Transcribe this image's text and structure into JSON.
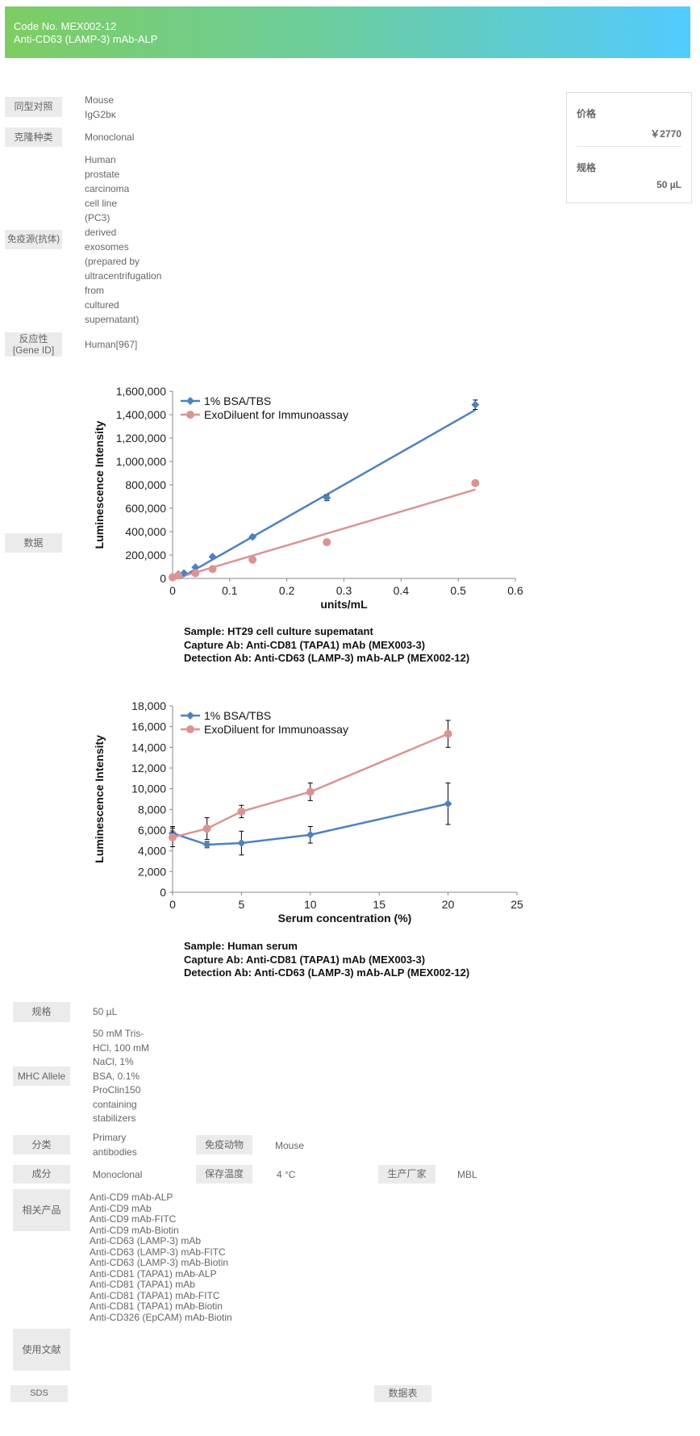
{
  "header": {
    "code_line": "Code No.   MEX002-12",
    "product_name": "Anti-CD63 (LAMP-3) mAb-ALP"
  },
  "price_box": {
    "price_label": "价格",
    "price_value": "￥2770",
    "size_label": "规格",
    "size_value": "50 µL"
  },
  "specs_top": [
    {
      "label": "同型对照",
      "lines": [
        "Mouse",
        "IgG2bκ"
      ]
    },
    {
      "label": "克隆种类",
      "lines": [
        "Monoclonal"
      ]
    },
    {
      "label": "免疫源(抗体)",
      "lines": [
        "Human",
        "prostate",
        "carcinoma",
        "cell line",
        "(PC3)",
        "derived",
        "exosomes",
        "(prepared by",
        "ultracentrifugation",
        "from",
        "cultured",
        "supernatant)"
      ]
    },
    {
      "label": "反应性\n[Gene ID]",
      "label_lines": [
        "反应性",
        "[Gene ID]"
      ],
      "lines": [
        "Human[967]"
      ]
    },
    {
      "label": "数据"
    }
  ],
  "chart_data": [
    {
      "type": "scatter",
      "title": "",
      "xlabel": "units/mL",
      "ylabel": "Luminescence Intensity",
      "xlim": [
        0,
        0.6
      ],
      "ylim": [
        0,
        1600000
      ],
      "xticks": [
        "0",
        "0.1",
        "0.2",
        "0.3",
        "0.4",
        "0.5",
        "0.6"
      ],
      "yticks": [
        "0",
        "200,000",
        "400,000",
        "600,000",
        "800,000",
        "1,000,000",
        "1,200,000",
        "1,400,000",
        "1,600,000"
      ],
      "legend_position": "top-left",
      "series": [
        {
          "name": "1% BSA/TBS",
          "color": "#4f81bd",
          "marker": "diamond",
          "x": [
            0,
            0.01,
            0.02,
            0.04,
            0.07,
            0.14,
            0.27,
            0.53
          ],
          "y": [
            10000,
            35000,
            45000,
            95000,
            185000,
            355000,
            690000,
            1485000
          ],
          "err": [
            5000,
            5000,
            8000,
            10000,
            10000,
            15000,
            25000,
            40000
          ],
          "trendline": [
            [
              0.012,
              0
            ],
            [
              0.53,
              1440000
            ]
          ]
        },
        {
          "name": "ExoDiluent for Immunoassay",
          "color": "#d99594",
          "marker": "circle",
          "x": [
            0,
            0.01,
            0.04,
            0.07,
            0.14,
            0.27,
            0.53
          ],
          "y": [
            10000,
            25000,
            45000,
            80000,
            160000,
            310000,
            815000
          ],
          "err": [
            3000,
            3000,
            5000,
            5000,
            8000,
            10000,
            15000
          ],
          "trendline": [
            [
              0.005,
              0
            ],
            [
              0.53,
              760000
            ]
          ]
        }
      ],
      "caption": [
        "Sample: HT29 cell culture supematant",
        "Capture Ab: Anti-CD81 (TAPA1)  mAb  (MEX003-3)",
        "Detection Ab: Anti-CD63 (LAMP-3) mAb-ALP  (MEX002-12)"
      ]
    },
    {
      "type": "line",
      "title": "",
      "xlabel": "Serum concentration (%)",
      "ylabel": "Luminescence Intensity",
      "xlim": [
        0,
        25
      ],
      "ylim": [
        0,
        18000
      ],
      "xticks": [
        "0",
        "5",
        "10",
        "15",
        "20",
        "25"
      ],
      "yticks": [
        "0",
        "2,000",
        "4,000",
        "6,000",
        "8,000",
        "10,000",
        "12,000",
        "14,000",
        "16,000",
        "18,000"
      ],
      "legend_position": "top-left",
      "series": [
        {
          "name": "1% BSA/TBS",
          "color": "#4f81bd",
          "marker": "diamond",
          "x": [
            0,
            2.5,
            5,
            10,
            20
          ],
          "y": [
            5700,
            4600,
            4750,
            5550,
            8550
          ],
          "err": [
            650,
            300,
            1150,
            800,
            2000
          ]
        },
        {
          "name": "ExoDiluent for Immunoassay",
          "color": "#d99594",
          "marker": "circle",
          "x": [
            0,
            2.5,
            5,
            10,
            20
          ],
          "y": [
            5300,
            6150,
            7800,
            9700,
            15300
          ],
          "err": [
            900,
            1050,
            600,
            850,
            1300
          ]
        }
      ],
      "caption": [
        "Sample: Human serum",
        "Capture Ab: Anti-CD81 (TAPA1)  mAb  (MEX003-3)",
        "Detection Ab: Anti-CD63 (LAMP-3) mAb-ALP  (MEX002-12)"
      ]
    }
  ],
  "specs_bottom": {
    "size": {
      "label": "规格",
      "value": "50 µL"
    },
    "mhc": {
      "label": "MHC Allele",
      "lines": [
        "50 mM Tris-",
        "HCl, 100 mM",
        "NaCl, 1%",
        "BSA, 0.1%",
        "ProClin150",
        "containing",
        "stabilizers"
      ]
    },
    "category": {
      "label": "分类",
      "lines": [
        "Primary",
        "antibodies"
      ]
    },
    "host": {
      "label": "免疫动物",
      "value": "Mouse"
    },
    "component": {
      "label": "成分",
      "value": "Monoclonal"
    },
    "storage": {
      "label": "保存温度",
      "value": "4 °C"
    },
    "manufacturer": {
      "label": "生产厂家",
      "value": "MBL"
    },
    "related": {
      "label": "相关产品",
      "items": [
        "Anti-CD9 mAb-ALP",
        "Anti-CD9 mAb",
        "Anti-CD9 mAb-FITC",
        "Anti-CD9 mAb-Biotin",
        "Anti-CD63 (LAMP-3) mAb",
        "Anti-CD63 (LAMP-3) mAb-FITC",
        "Anti-CD63 (LAMP-3) mAb-Biotin",
        "Anti-CD81 (TAPA1) mAb-ALP",
        "Anti-CD81 (TAPA1) mAb",
        "Anti-CD81 (TAPA1) mAb-FITC",
        "Anti-CD81 (TAPA1) mAb-Biotin",
        "Anti-CD326 (EpCAM) mAb-Biotin"
      ]
    },
    "literature": {
      "label": "使用文献"
    },
    "sds": {
      "label": "SDS"
    },
    "datasheet": {
      "label": "数据表"
    }
  }
}
